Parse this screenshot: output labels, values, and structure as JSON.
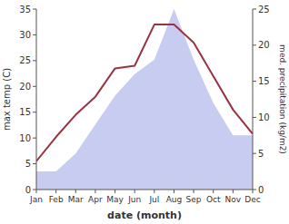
{
  "chart_data": {
    "type": "line",
    "xlabel": "date (month)",
    "ylabel": "max temp (C)",
    "y2label": "med. precipitation (kg/m2)",
    "categories": [
      "Jan",
      "Feb",
      "Mar",
      "Apr",
      "May",
      "Jun",
      "Jul",
      "Aug",
      "Sep",
      "Oct",
      "Nov",
      "Dec"
    ],
    "series": [
      {
        "type": "area",
        "axis": "y2",
        "color": "#c8ccf0",
        "values": [
          2.5,
          2.5,
          5.0,
          9.0,
          13.0,
          16.0,
          18.0,
          25.0,
          18.0,
          12.0,
          7.5,
          7.5
        ]
      },
      {
        "type": "line",
        "color": "#993344",
        "values": [
          5.5,
          10.2,
          14.5,
          18.0,
          23.5,
          24.0,
          32.0,
          32.0,
          28.5,
          22.0,
          15.5,
          10.8
        ]
      }
    ],
    "ylim": [
      0,
      35
    ],
    "yticks": [
      0,
      5,
      10,
      15,
      20,
      25,
      30,
      35
    ],
    "y2lim": [
      0,
      25
    ],
    "y2ticks": [
      0,
      5,
      10,
      15,
      20,
      25
    ],
    "grid": false
  }
}
